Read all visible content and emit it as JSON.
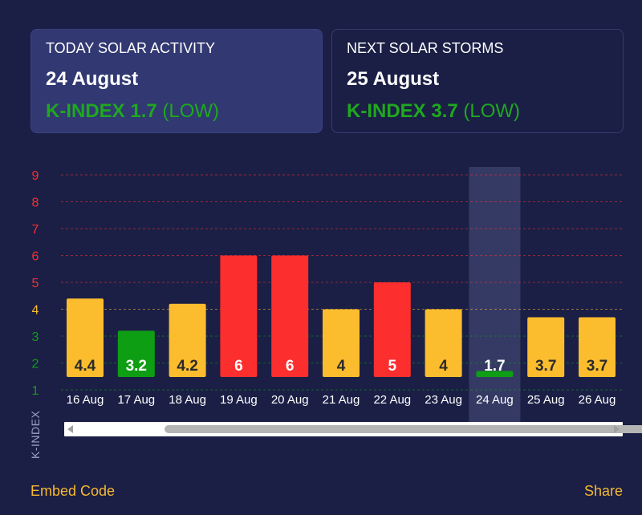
{
  "today_card": {
    "label": "TODAY SOLAR ACTIVITY",
    "date": "24 August",
    "kindex": "K-INDEX 1.7",
    "level": "(LOW)"
  },
  "next_card": {
    "label": "NEXT SOLAR STORMS",
    "date": "25 August",
    "kindex": "K-INDEX 3.7",
    "level": "(LOW)"
  },
  "colors": {
    "background": "#1b1f45",
    "low_green": "#0e9e14",
    "moderate_yellow": "#fbbd2e",
    "high_red": "#fd2e2e",
    "highlight": "#3a3f6a"
  },
  "chart_data": {
    "type": "bar",
    "categories": [
      "16 Aug",
      "17 Aug",
      "18 Aug",
      "19 Aug",
      "20 Aug",
      "21 Aug",
      "22 Aug",
      "23 Aug",
      "24 Aug",
      "25 Aug",
      "26 Aug"
    ],
    "values": [
      4.4,
      3.2,
      4.2,
      6,
      6,
      4,
      5,
      4,
      1.7,
      3.7,
      3.7
    ],
    "labels": [
      "4.4",
      "3.2",
      "4.2",
      "6",
      "6",
      "4",
      "5",
      "4",
      "1.7",
      "3.7",
      "3.7"
    ],
    "bar_colors": [
      "#fbbd2e",
      "#0e9e14",
      "#fbbd2e",
      "#fd2e2e",
      "#fd2e2e",
      "#fbbd2e",
      "#fd2e2e",
      "#fbbd2e",
      "#0e9e14",
      "#fbbd2e",
      "#fbbd2e"
    ],
    "highlighted_category": "24 Aug",
    "ylabel": "K-INDEX",
    "xlabel": "",
    "yticks": [
      1,
      2,
      3,
      4,
      5,
      6,
      7,
      8,
      9
    ],
    "ytick_colors": [
      "#0e9e14",
      "#0e9e14",
      "#0e9e14",
      "#fbbd2e",
      "#fd2e2e",
      "#fd2e2e",
      "#fd2e2e",
      "#fd2e2e",
      "#fd2e2e"
    ],
    "ylim": [
      1,
      9
    ],
    "grid": true
  },
  "footer": {
    "embed": "Embed Code",
    "share": "Share"
  }
}
